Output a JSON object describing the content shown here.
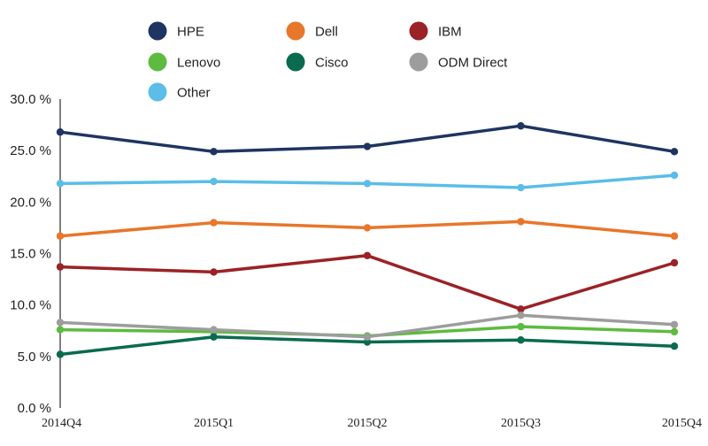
{
  "chart_data": {
    "type": "line",
    "categories": [
      "2014Q4",
      "2015Q1",
      "2015Q2",
      "2015Q3",
      "2015Q4"
    ],
    "ylim": [
      0,
      30
    ],
    "yticks": [
      0,
      5,
      10,
      15,
      20,
      25,
      30
    ],
    "ytick_labels": [
      "0.0 %",
      "5.0 %",
      "10.0 %",
      "15.0 %",
      "20.0 %",
      "25.0 %",
      "30.0 %"
    ],
    "grid": false,
    "legend_position": "top",
    "series": [
      {
        "name": "HPE",
        "color": "#1f3461",
        "values": [
          26.8,
          24.9,
          25.4,
          27.4,
          24.9
        ]
      },
      {
        "name": "Dell",
        "color": "#e8762b",
        "values": [
          16.7,
          18.0,
          17.5,
          18.1,
          16.7
        ]
      },
      {
        "name": "IBM",
        "color": "#9b2226",
        "values": [
          13.7,
          13.2,
          14.8,
          9.6,
          14.1
        ]
      },
      {
        "name": "Lenovo",
        "color": "#5dbb3f",
        "values": [
          7.6,
          7.4,
          7.0,
          7.9,
          7.4
        ]
      },
      {
        "name": "Cisco",
        "color": "#0a6b4f",
        "values": [
          5.2,
          6.9,
          6.4,
          6.6,
          6.0
        ]
      },
      {
        "name": "ODM Direct",
        "color": "#9d9d9d",
        "values": [
          8.3,
          7.6,
          6.9,
          9.0,
          8.1
        ]
      },
      {
        "name": "Other",
        "color": "#5bbde8",
        "values": [
          21.8,
          22.0,
          21.8,
          21.4,
          22.6
        ]
      }
    ]
  }
}
